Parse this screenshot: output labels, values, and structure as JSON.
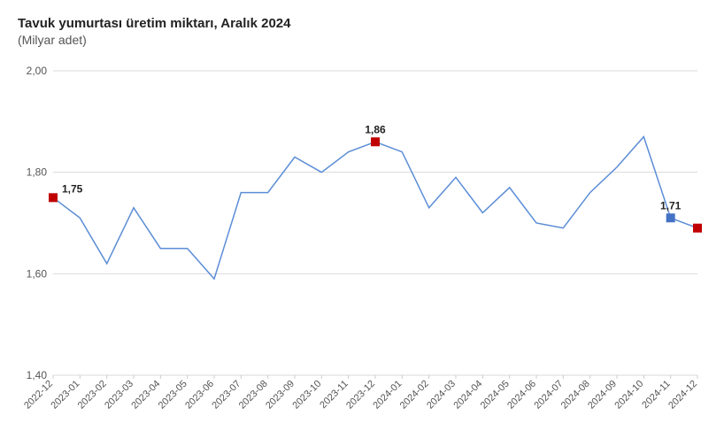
{
  "title": "Tavuk yumurtası üretim miktarı, Aralık 2024",
  "subtitle": "(Milyar adet)",
  "chart": {
    "type": "line",
    "background_color": "#ffffff",
    "grid_color": "#d9d9d9",
    "axis_color": "#cccccc",
    "line_color": "#5b8dd6",
    "line_width": 1.5,
    "title_fontsize": 15,
    "subtitle_fontsize": 14,
    "ytick_fontsize": 12,
    "xtick_fontsize": 11,
    "label_fontsize": 12,
    "ylim": [
      1.4,
      2.0
    ],
    "ytick_step": 0.2,
    "yticks": [
      "2,00",
      "1,80",
      "1,60",
      "1,40"
    ],
    "categories": [
      "2022-12",
      "2023-01",
      "2023-02",
      "2023-03",
      "2023-04",
      "2023-05",
      "2023-06",
      "2023-07",
      "2023-08",
      "2023-09",
      "2023-10",
      "2023-11",
      "2023-12",
      "2024-01",
      "2024-02",
      "2024-03",
      "2024-04",
      "2024-05",
      "2024-06",
      "2024-07",
      "2024-08",
      "2024-09",
      "2024-10",
      "2024-11",
      "2024-12"
    ],
    "values": [
      1.75,
      1.71,
      1.62,
      1.73,
      1.65,
      1.65,
      1.59,
      1.76,
      1.76,
      1.83,
      1.8,
      1.84,
      1.86,
      1.84,
      1.73,
      1.79,
      1.72,
      1.77,
      1.7,
      1.69,
      1.76,
      1.81,
      1.87,
      1.71,
      1.69
    ],
    "highlights": [
      {
        "index": 0,
        "label": "1,75",
        "shape": "square",
        "size": 10,
        "color": "#c00000",
        "label_pos": "right"
      },
      {
        "index": 12,
        "label": "1,86",
        "shape": "square",
        "size": 10,
        "color": "#c00000",
        "label_pos": "above"
      },
      {
        "index": 23,
        "label": "1,71",
        "shape": "square",
        "size": 10,
        "color": "#4472c4",
        "label_pos": "above"
      },
      {
        "index": 24,
        "label": "1,69",
        "shape": "square",
        "size": 10,
        "color": "#c00000",
        "label_pos": "right"
      }
    ]
  }
}
